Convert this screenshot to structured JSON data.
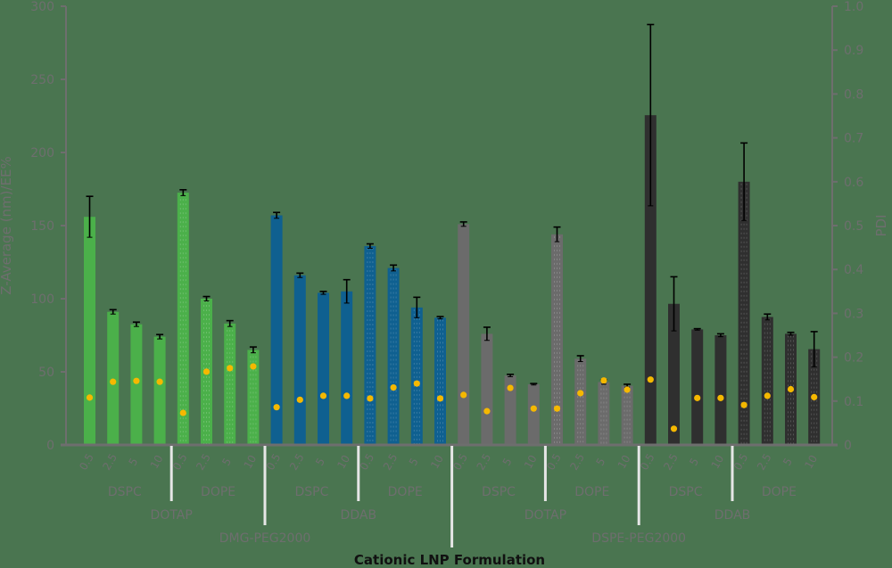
{
  "chart_data": {
    "type": "bar",
    "title": "",
    "xlabel": "Cationic LNP Formulation",
    "ylabel": "Z-Average (nm)/EE%",
    "y2label": "PDI",
    "ylim": [
      0,
      300
    ],
    "y2lim": [
      0,
      1.0
    ],
    "yticks": [
      "0",
      "50",
      "100",
      "150",
      "200",
      "250",
      "300"
    ],
    "y2ticks": [
      "0",
      "0.1",
      "0.2",
      "0.3",
      "0.4",
      "0.5",
      "0.6",
      "0.7",
      "0.8",
      "0.9",
      "1.0"
    ],
    "grid": false,
    "legend": null,
    "categories": [
      "0.5",
      "2.5",
      "5",
      "10",
      "0.5",
      "2.5",
      "5",
      "10",
      "0.5",
      "2.5",
      "5",
      "10",
      "0.5",
      "2.5",
      "5",
      "10",
      "0.5",
      "2.5",
      "5",
      "10",
      "0.5",
      "2.5",
      "5",
      "10",
      "0.5",
      "2.5",
      "5",
      "10",
      "0.5",
      "2.5",
      "5",
      "10"
    ],
    "group_levels": {
      "helper_lipid": [
        "DSPC",
        "DOPE",
        "DSPC",
        "DOPE",
        "DSPC",
        "DOPE",
        "DSPC",
        "DOPE"
      ],
      "cationic_lipid": [
        "DOTAP",
        "DDAB",
        "DOTAP",
        "DDAB"
      ],
      "peg_lipid": [
        "DMG-PEG2000",
        "DSPE-PEG2000"
      ]
    },
    "series": [
      {
        "name": "Z-Average (nm)",
        "axis": "left",
        "kind": "bar",
        "values": [
          156,
          91,
          82.5,
          74,
          172.5,
          100,
          83,
          65,
          157,
          116,
          104,
          105,
          136,
          121,
          94,
          87,
          151,
          76,
          47.5,
          41.5,
          144,
          59,
          43,
          40.5,
          225.5,
          96.5,
          79,
          75,
          180,
          87.5,
          76,
          65.5
        ],
        "error": [
          14,
          1.5,
          1.5,
          1.5,
          2,
          1.5,
          2,
          2,
          2,
          1.5,
          1,
          8,
          1.5,
          2,
          7,
          0.8,
          1.5,
          4.5,
          0.8,
          0.5,
          5,
          2,
          1.5,
          1,
          62,
          18.5,
          0.5,
          1,
          26.5,
          2,
          1,
          12
        ]
      },
      {
        "name": "PDI",
        "axis": "right",
        "kind": "point",
        "values": [
          0.108,
          0.144,
          0.146,
          0.144,
          0.073,
          0.167,
          0.175,
          0.179,
          0.086,
          0.103,
          0.112,
          0.112,
          0.106,
          0.131,
          0.14,
          0.106,
          0.114,
          0.077,
          0.13,
          0.083,
          0.083,
          0.118,
          0.147,
          0.126,
          0.149,
          0.037,
          0.107,
          0.107,
          0.091,
          0.112,
          0.127,
          0.109
        ]
      }
    ],
    "colors": {
      "DMG_DOTAP": "#4bb04a",
      "DMG_DDAB": "#0f6090",
      "DSPE_DOTAP": "#6b6b6b",
      "DSPE_DDAB": "#2f2f2f",
      "pdi_marker": "#f5b800",
      "error_bar": "#000000",
      "axis": "#6e6e6e",
      "separator": "#e6e6e6",
      "background": "#4a7550"
    }
  }
}
